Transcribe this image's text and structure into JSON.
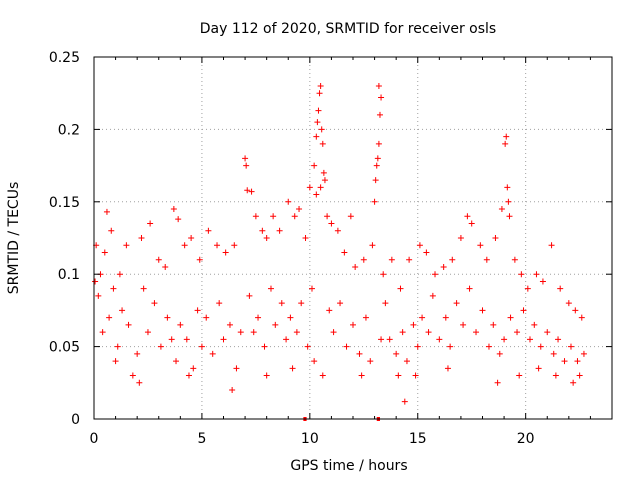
{
  "chart_data": {
    "type": "scatter",
    "title": "Day 112 of 2020, SRMTID for receiver osls",
    "xlabel": "GPS time / hours",
    "ylabel": "SRMTID / TECUs",
    "xlim": [
      0,
      24
    ],
    "ylim": [
      0,
      0.25
    ],
    "xticks": [
      0,
      5,
      10,
      15,
      20
    ],
    "yticks": [
      0,
      0.05,
      0.1,
      0.15,
      0.2,
      0.25
    ],
    "xtick_labels": [
      "0",
      "5",
      "10",
      "15",
      "20"
    ],
    "ytick_labels": [
      "0",
      "0.05",
      "0.1",
      "0.15",
      "0.2",
      "0.25"
    ],
    "grid": true,
    "marker": "plus",
    "series_color": "#ff0000",
    "x_extent": [
      0,
      22.7
    ],
    "baseline_segments": [
      {
        "x": [
          9.7,
          9.85
        ],
        "y": 0
      },
      {
        "x": [
          13.1,
          13.25
        ],
        "y": 0
      }
    ],
    "series": [
      {
        "name": "SRMTID",
        "points": [
          [
            0.1,
            0.12
          ],
          [
            0.3,
            0.1
          ],
          [
            0.5,
            0.115
          ],
          [
            0.6,
            0.143
          ],
          [
            0.8,
            0.13
          ],
          [
            1.2,
            0.1
          ],
          [
            1.5,
            0.12
          ],
          [
            2.2,
            0.125
          ],
          [
            2.6,
            0.135
          ],
          [
            3.0,
            0.11
          ],
          [
            3.3,
            0.105
          ],
          [
            3.7,
            0.145
          ],
          [
            3.9,
            0.138
          ],
          [
            4.2,
            0.12
          ],
          [
            4.5,
            0.125
          ],
          [
            4.9,
            0.11
          ],
          [
            5.3,
            0.13
          ],
          [
            5.7,
            0.12
          ],
          [
            6.1,
            0.115
          ],
          [
            6.5,
            0.12
          ],
          [
            7.0,
            0.18
          ],
          [
            7.05,
            0.175
          ],
          [
            7.1,
            0.158
          ],
          [
            7.3,
            0.157
          ],
          [
            7.5,
            0.14
          ],
          [
            7.8,
            0.13
          ],
          [
            8.0,
            0.125
          ],
          [
            8.3,
            0.14
          ],
          [
            8.6,
            0.13
          ],
          [
            9.0,
            0.15
          ],
          [
            9.3,
            0.14
          ],
          [
            9.5,
            0.145
          ],
          [
            9.8,
            0.125
          ],
          [
            10.0,
            0.16
          ],
          [
            10.2,
            0.175
          ],
          [
            10.3,
            0.195
          ],
          [
            10.35,
            0.205
          ],
          [
            10.4,
            0.213
          ],
          [
            10.45,
            0.225
          ],
          [
            10.5,
            0.23
          ],
          [
            10.55,
            0.2
          ],
          [
            10.6,
            0.19
          ],
          [
            10.65,
            0.17
          ],
          [
            10.7,
            0.165
          ],
          [
            10.5,
            0.16
          ],
          [
            10.3,
            0.155
          ],
          [
            10.8,
            0.14
          ],
          [
            11.0,
            0.135
          ],
          [
            11.3,
            0.13
          ],
          [
            11.6,
            0.115
          ],
          [
            11.9,
            0.14
          ],
          [
            12.1,
            0.105
          ],
          [
            12.5,
            0.11
          ],
          [
            12.9,
            0.12
          ],
          [
            13.0,
            0.15
          ],
          [
            13.05,
            0.165
          ],
          [
            13.1,
            0.175
          ],
          [
            13.15,
            0.18
          ],
          [
            13.2,
            0.19
          ],
          [
            13.25,
            0.21
          ],
          [
            13.3,
            0.222
          ],
          [
            13.2,
            0.23
          ],
          [
            13.4,
            0.1
          ],
          [
            13.8,
            0.11
          ],
          [
            14.2,
            0.09
          ],
          [
            14.6,
            0.11
          ],
          [
            15.1,
            0.12
          ],
          [
            15.4,
            0.115
          ],
          [
            15.8,
            0.1
          ],
          [
            16.2,
            0.105
          ],
          [
            16.6,
            0.11
          ],
          [
            17.0,
            0.125
          ],
          [
            17.3,
            0.14
          ],
          [
            17.5,
            0.135
          ],
          [
            17.9,
            0.12
          ],
          [
            18.2,
            0.11
          ],
          [
            18.6,
            0.125
          ],
          [
            18.9,
            0.145
          ],
          [
            19.05,
            0.19
          ],
          [
            19.1,
            0.195
          ],
          [
            19.15,
            0.16
          ],
          [
            19.2,
            0.15
          ],
          [
            19.25,
            0.14
          ],
          [
            19.5,
            0.11
          ],
          [
            19.8,
            0.1
          ],
          [
            20.1,
            0.09
          ],
          [
            20.5,
            0.1
          ],
          [
            20.8,
            0.095
          ],
          [
            21.2,
            0.12
          ],
          [
            21.6,
            0.09
          ],
          [
            22.0,
            0.08
          ],
          [
            22.3,
            0.075
          ],
          [
            22.6,
            0.07
          ],
          [
            0.2,
            0.085
          ],
          [
            0.4,
            0.06
          ],
          [
            0.7,
            0.07
          ],
          [
            0.9,
            0.09
          ],
          [
            1.1,
            0.05
          ],
          [
            1.3,
            0.075
          ],
          [
            1.6,
            0.065
          ],
          [
            1.8,
            0.03
          ],
          [
            2.0,
            0.045
          ],
          [
            2.3,
            0.09
          ],
          [
            2.5,
            0.06
          ],
          [
            2.8,
            0.08
          ],
          [
            3.1,
            0.05
          ],
          [
            3.4,
            0.07
          ],
          [
            3.6,
            0.055
          ],
          [
            3.8,
            0.04
          ],
          [
            4.0,
            0.065
          ],
          [
            4.3,
            0.055
          ],
          [
            4.6,
            0.035
          ],
          [
            4.8,
            0.075
          ],
          [
            5.0,
            0.05
          ],
          [
            5.2,
            0.07
          ],
          [
            5.5,
            0.045
          ],
          [
            5.8,
            0.08
          ],
          [
            6.0,
            0.055
          ],
          [
            6.3,
            0.065
          ],
          [
            6.6,
            0.035
          ],
          [
            6.8,
            0.06
          ],
          [
            7.2,
            0.085
          ],
          [
            7.4,
            0.06
          ],
          [
            7.6,
            0.07
          ],
          [
            7.9,
            0.05
          ],
          [
            8.2,
            0.09
          ],
          [
            8.4,
            0.065
          ],
          [
            8.7,
            0.08
          ],
          [
            8.9,
            0.055
          ],
          [
            9.1,
            0.07
          ],
          [
            9.4,
            0.06
          ],
          [
            9.6,
            0.08
          ],
          [
            9.9,
            0.05
          ],
          [
            10.1,
            0.09
          ],
          [
            10.9,
            0.075
          ],
          [
            11.1,
            0.06
          ],
          [
            11.4,
            0.08
          ],
          [
            11.7,
            0.05
          ],
          [
            12.0,
            0.065
          ],
          [
            12.3,
            0.045
          ],
          [
            12.6,
            0.07
          ],
          [
            12.8,
            0.04
          ],
          [
            13.5,
            0.08
          ],
          [
            13.7,
            0.055
          ],
          [
            14.0,
            0.045
          ],
          [
            14.1,
            0.03
          ],
          [
            14.3,
            0.06
          ],
          [
            14.5,
            0.04
          ],
          [
            14.8,
            0.065
          ],
          [
            15.0,
            0.05
          ],
          [
            15.2,
            0.07
          ],
          [
            15.5,
            0.06
          ],
          [
            15.7,
            0.085
          ],
          [
            16.0,
            0.055
          ],
          [
            16.3,
            0.07
          ],
          [
            16.5,
            0.05
          ],
          [
            16.8,
            0.08
          ],
          [
            17.1,
            0.065
          ],
          [
            17.4,
            0.09
          ],
          [
            17.7,
            0.06
          ],
          [
            18.0,
            0.075
          ],
          [
            18.3,
            0.05
          ],
          [
            18.5,
            0.065
          ],
          [
            18.8,
            0.045
          ],
          [
            19.0,
            0.055
          ],
          [
            19.3,
            0.07
          ],
          [
            19.6,
            0.06
          ],
          [
            19.9,
            0.075
          ],
          [
            20.2,
            0.055
          ],
          [
            20.4,
            0.065
          ],
          [
            20.7,
            0.05
          ],
          [
            21.0,
            0.06
          ],
          [
            21.3,
            0.045
          ],
          [
            21.5,
            0.055
          ],
          [
            21.8,
            0.04
          ],
          [
            22.1,
            0.05
          ],
          [
            22.4,
            0.04
          ],
          [
            22.7,
            0.045
          ],
          [
            0.05,
            0.095
          ],
          [
            1.0,
            0.04
          ],
          [
            2.1,
            0.025
          ],
          [
            4.4,
            0.03
          ],
          [
            6.4,
            0.02
          ],
          [
            8.0,
            0.03
          ],
          [
            9.2,
            0.035
          ],
          [
            12.4,
            0.03
          ],
          [
            14.4,
            0.012
          ],
          [
            14.9,
            0.03
          ],
          [
            16.4,
            0.035
          ],
          [
            18.7,
            0.025
          ],
          [
            19.7,
            0.03
          ],
          [
            20.6,
            0.035
          ],
          [
            21.4,
            0.03
          ],
          [
            22.2,
            0.025
          ],
          [
            22.5,
            0.03
          ],
          [
            10.6,
            0.03
          ],
          [
            10.2,
            0.04
          ],
          [
            13.3,
            0.055
          ]
        ]
      }
    ]
  }
}
